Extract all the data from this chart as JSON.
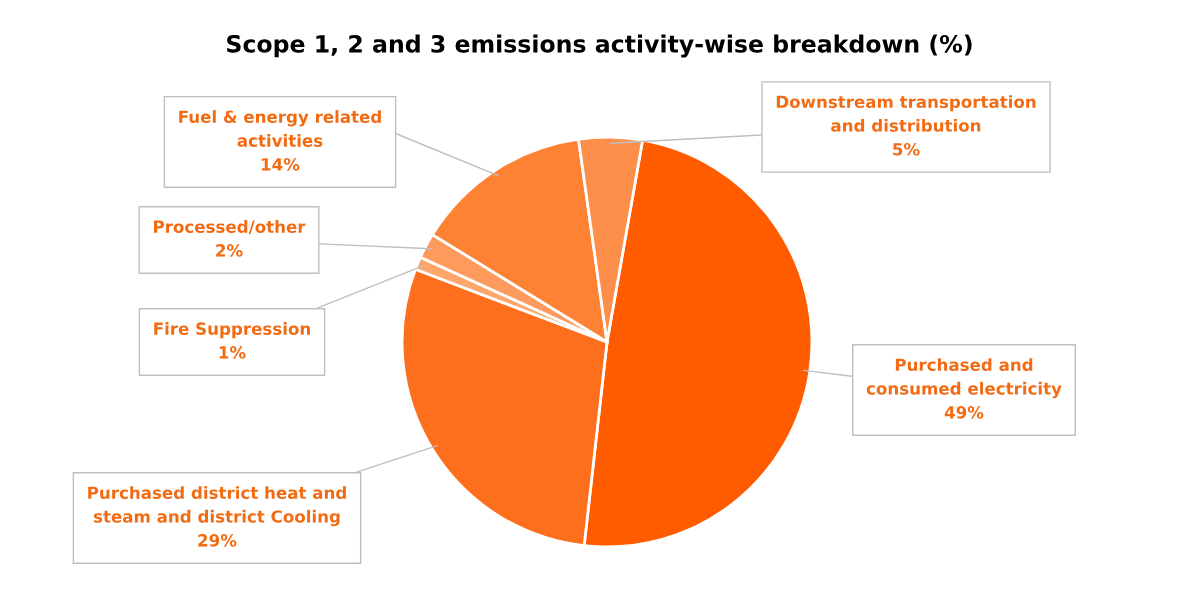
{
  "chart_data": {
    "type": "pie",
    "title": "Scope 1, 2 and 3 emissions activity-wise breakdown (%)",
    "categories": [
      "Purchased and\nconsumed electricity",
      "Purchased district heat and\nsteam and district Cooling",
      "Fire Suppression",
      "Processed/other",
      "Fuel & energy related\nactivities",
      "Downstream transportation\nand distribution"
    ],
    "values": [
      49,
      29,
      1,
      2,
      14,
      5
    ],
    "value_labels": [
      "49%",
      "29%",
      "1%",
      "2%",
      "14%",
      "5%"
    ],
    "colors": [
      "#ff5c00",
      "#fd6f1c",
      "#fea56a",
      "#fd9a5c",
      "#fd8234",
      "#fe8f4a"
    ],
    "legend": false
  }
}
